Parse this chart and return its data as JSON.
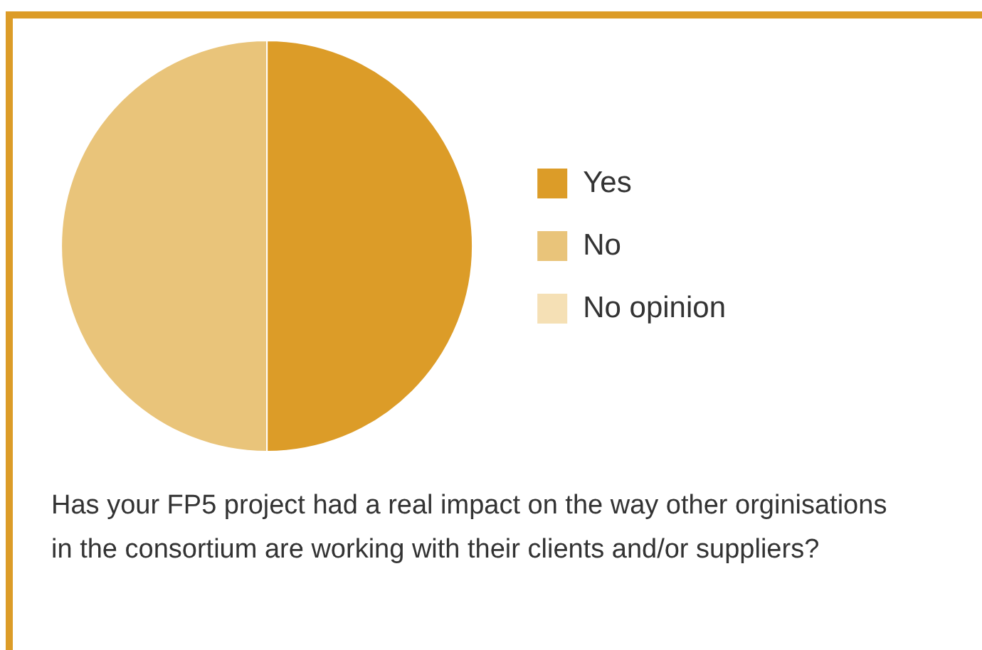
{
  "chart_data": {
    "type": "pie",
    "categories": [
      "Yes",
      "No",
      "No opinion"
    ],
    "values": [
      50,
      50,
      0
    ],
    "colors": [
      "#dc9c28",
      "#e9c47a",
      "#f5e0b5"
    ],
    "legend": "right",
    "annotations": [
      "Has your FP5 project had a real impact on the way other orginisations in the consortium are working with their clients and/or suppliers?"
    ]
  }
}
